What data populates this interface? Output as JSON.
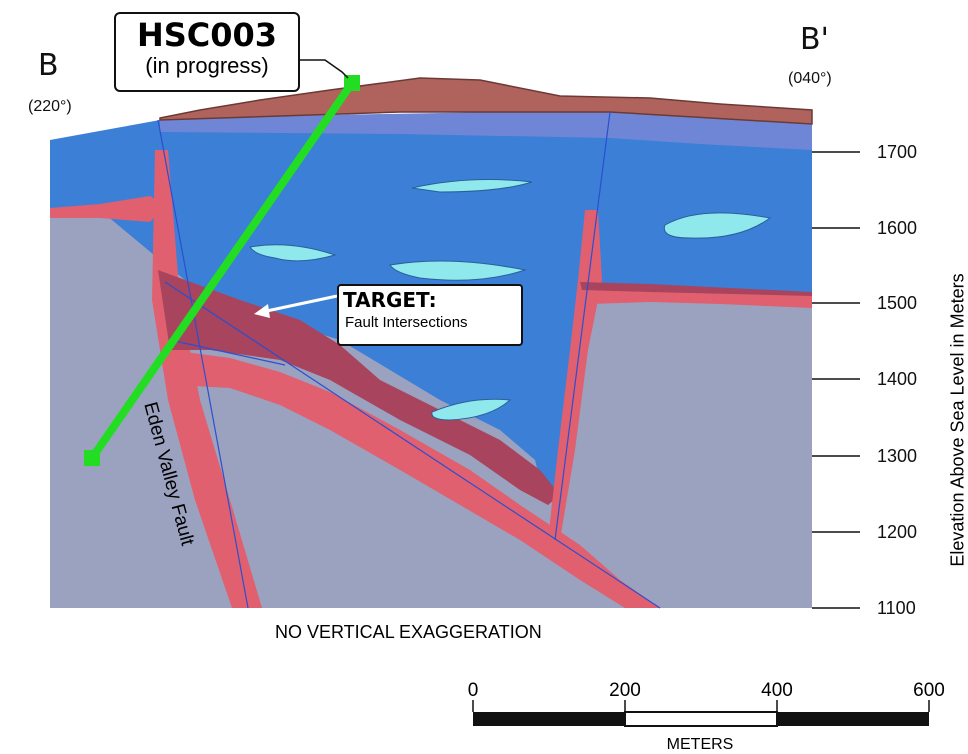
{
  "section": {
    "start_label": "B",
    "start_bearing": "(220°)",
    "end_label": "B'",
    "end_bearing": "(040°)",
    "note": "NO VERTICAL EXAGGERATION"
  },
  "drillhole": {
    "id": "HSC003",
    "status": "(in progress)",
    "color": "#22dd22"
  },
  "target": {
    "title": "TARGET:",
    "subtitle": "Fault Intersections"
  },
  "fault": {
    "name": "Eden Valley Fault"
  },
  "elevation_axis": {
    "title": "Elevation Above Sea Level in Meters",
    "ticks": [
      "1700",
      "1600",
      "1500",
      "1400",
      "1300",
      "1200",
      "1100"
    ]
  },
  "scale_bar": {
    "labels": [
      "0",
      "200",
      "400",
      "600"
    ],
    "unit": "METERS"
  },
  "colors": {
    "host_rock": "#9ba2bf",
    "blue_unit": "#3c7fd6",
    "lens": "#8fe8ec",
    "fault_zone": "#e06070",
    "intersection_zone": "#a8445e",
    "cover": "#b0635c",
    "upper_blue": "#6f86d6"
  }
}
